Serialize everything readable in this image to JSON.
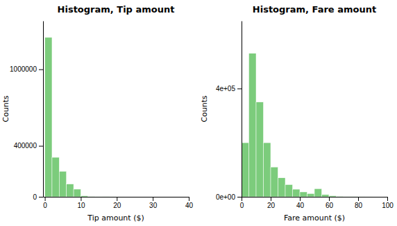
{
  "chart_data": [
    {
      "type": "histogram",
      "title": "Histogram, Tip amount",
      "xlabel": "Tip amount ($)",
      "ylabel": "Counts",
      "bins": [
        0,
        2,
        4,
        6,
        8,
        10,
        12,
        14,
        16,
        18,
        20,
        22,
        24,
        26,
        28,
        30,
        32,
        34,
        36,
        38,
        40
      ],
      "values": [
        1250000,
        310000,
        200000,
        100000,
        60000,
        8000,
        3000,
        1500,
        800,
        300,
        100,
        50,
        30,
        20,
        10,
        5,
        3,
        2,
        1,
        1
      ],
      "color": "#7ccc7c",
      "xlim": [
        -0.5,
        40
      ],
      "ylim": [
        0,
        1380000
      ],
      "xticks": [
        0,
        10,
        20,
        30,
        40
      ],
      "yticks": [
        0,
        400000,
        1000000
      ],
      "grid": false
    },
    {
      "type": "histogram",
      "title": "Histogram, Fare amount",
      "xlabel": "Fare amount ($)",
      "ylabel": "Counts",
      "bins": [
        0,
        5,
        10,
        15,
        20,
        25,
        30,
        35,
        40,
        45,
        50,
        55,
        60,
        65,
        70,
        75,
        80,
        85,
        90,
        95,
        100
      ],
      "values": [
        200000,
        530000,
        350000,
        200000,
        110000,
        70000,
        45000,
        28000,
        18000,
        12000,
        30000,
        8000,
        4000,
        2000,
        1000,
        500,
        200,
        100,
        50,
        20
      ],
      "color": "#7ccc7c",
      "xlim": [
        0,
        100
      ],
      "ylim": [
        0,
        650000
      ],
      "xticks": [
        0,
        20,
        40,
        60,
        80,
        100
      ],
      "yticks": [
        {
          "value": 0,
          "label": "0e+00"
        },
        {
          "value": 400000,
          "label": "4e+05"
        }
      ],
      "grid": false
    }
  ]
}
